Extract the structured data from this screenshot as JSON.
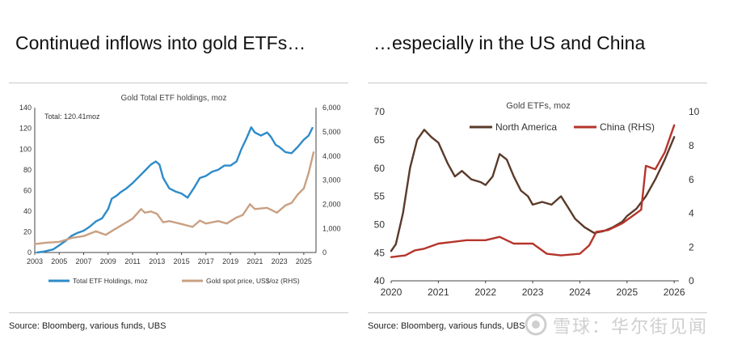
{
  "left": {
    "headline": "Continued inflows into gold ETFs…",
    "source": "Source: Bloomberg, various funds, UBS"
  },
  "right": {
    "headline": "…especially in the US and China",
    "source": "Source: Bloomberg, various funds, UBS"
  },
  "watermark": "雪球：华尔街见闻",
  "chart_data": [
    {
      "type": "line",
      "title": "Gold Total ETF holdings, moz",
      "annotation": "Total: 120.41moz",
      "xlabel": "",
      "ylabel": "",
      "xlim": [
        2003,
        2026
      ],
      "ylim": [
        0,
        140
      ],
      "y2lim": [
        0,
        6000
      ],
      "x_ticks": [
        "2003",
        "2005",
        "2007",
        "2009",
        "2011",
        "2013",
        "2015",
        "2017",
        "2019",
        "2021",
        "2023",
        "2025"
      ],
      "y_ticks": [
        "0",
        "20",
        "40",
        "60",
        "80",
        "100",
        "120",
        "140"
      ],
      "y2_ticks": [
        "0",
        "1,000",
        "2,000",
        "3,000",
        "4,000",
        "5,000",
        "6,000"
      ],
      "legend_position": "bottom",
      "grid": false,
      "series": [
        {
          "name": "Total ETF Holdings, moz",
          "axis": "left",
          "color": "#2e8bc9",
          "x": [
            2003.2,
            2003.8,
            2004.5,
            2005.0,
            2005.5,
            2006.0,
            2006.5,
            2007.0,
            2007.5,
            2008.0,
            2008.5,
            2009.0,
            2009.3,
            2009.7,
            2010.0,
            2010.5,
            2011.0,
            2011.5,
            2012.0,
            2012.5,
            2012.9,
            2013.2,
            2013.5,
            2014.0,
            2014.5,
            2015.0,
            2015.5,
            2016.0,
            2016.5,
            2017.0,
            2017.5,
            2018.0,
            2018.5,
            2019.0,
            2019.5,
            2019.9,
            2020.3,
            2020.7,
            2021.0,
            2021.5,
            2022.0,
            2022.3,
            2022.7,
            2023.0,
            2023.5,
            2024.0,
            2024.5,
            2025.0,
            2025.4,
            2025.7
          ],
          "values": [
            0,
            1,
            3,
            7,
            11,
            16,
            19,
            21,
            25,
            30,
            33,
            42,
            52,
            55,
            58,
            62,
            67,
            73,
            79,
            85,
            88,
            85,
            72,
            62,
            59,
            57,
            53,
            62,
            72,
            74,
            78,
            80,
            84,
            84,
            88,
            100,
            110,
            121,
            116,
            113,
            116,
            112,
            104,
            102,
            97,
            96,
            102,
            109,
            113,
            120.4
          ]
        },
        {
          "name": "Gold spot price, US$/oz (RHS)",
          "axis": "right",
          "color": "#c9a083",
          "x": [
            2003.0,
            2004.0,
            2005.0,
            2006.0,
            2007.0,
            2008.0,
            2008.8,
            2009.5,
            2010.0,
            2010.5,
            2011.0,
            2011.7,
            2012.0,
            2012.5,
            2013.0,
            2013.5,
            2014.0,
            2015.0,
            2015.9,
            2016.5,
            2017.0,
            2018.0,
            2018.7,
            2019.5,
            2020.0,
            2020.6,
            2021.0,
            2022.0,
            2022.8,
            2023.5,
            2024.0,
            2024.5,
            2025.0,
            2025.4,
            2025.8
          ],
          "values": [
            350,
            410,
            440,
            600,
            680,
            880,
            730,
            950,
            1100,
            1250,
            1400,
            1800,
            1650,
            1700,
            1600,
            1250,
            1300,
            1180,
            1060,
            1320,
            1200,
            1300,
            1200,
            1450,
            1550,
            2000,
            1800,
            1850,
            1650,
            1950,
            2050,
            2400,
            2650,
            3300,
            4150
          ]
        }
      ]
    },
    {
      "type": "line",
      "title": "Gold ETFs, moz",
      "xlabel": "",
      "ylabel": "",
      "xlim": [
        2020,
        2026.1
      ],
      "ylim": [
        40,
        70
      ],
      "y2lim": [
        0,
        10
      ],
      "x_ticks": [
        "2020",
        "2021",
        "2022",
        "2023",
        "2024",
        "2025",
        "2026"
      ],
      "y_ticks": [
        "40",
        "45",
        "50",
        "55",
        "60",
        "65",
        "70"
      ],
      "y2_ticks": [
        "0",
        "2",
        "4",
        "6",
        "8",
        "10"
      ],
      "legend_position": "top",
      "grid": false,
      "series": [
        {
          "name": "North America",
          "axis": "left",
          "color": "#5a3a2a",
          "x": [
            2020.0,
            2020.1,
            2020.25,
            2020.4,
            2020.55,
            2020.7,
            2020.85,
            2021.0,
            2021.2,
            2021.35,
            2021.5,
            2021.7,
            2021.9,
            2022.0,
            2022.15,
            2022.3,
            2022.45,
            2022.6,
            2022.75,
            2022.9,
            2023.0,
            2023.2,
            2023.4,
            2023.6,
            2023.75,
            2023.9,
            2024.1,
            2024.3,
            2024.5,
            2024.7,
            2024.9,
            2025.0,
            2025.2,
            2025.4,
            2025.6,
            2025.8,
            2026.0
          ],
          "values": [
            45.3,
            46.5,
            52,
            60,
            65,
            66.8,
            65.5,
            64.5,
            60.8,
            58.5,
            59.5,
            58,
            57.5,
            57,
            58.5,
            62.5,
            61.5,
            58.5,
            56,
            55,
            53.5,
            54,
            53.5,
            55,
            53,
            51,
            49.5,
            48.5,
            48.8,
            49.5,
            50.5,
            51.5,
            52.8,
            55,
            58,
            61.5,
            65.5
          ]
        },
        {
          "name": "China (RHS)",
          "axis": "right",
          "color": "#b5352b",
          "x": [
            2020.0,
            2020.3,
            2020.5,
            2020.7,
            2021.0,
            2021.3,
            2021.6,
            2022.0,
            2022.3,
            2022.6,
            2023.0,
            2023.3,
            2023.6,
            2024.0,
            2024.2,
            2024.35,
            2024.6,
            2024.9,
            2025.1,
            2025.3,
            2025.4,
            2025.6,
            2025.8,
            2026.0
          ],
          "values": [
            1.4,
            1.5,
            1.8,
            1.9,
            2.2,
            2.3,
            2.4,
            2.4,
            2.6,
            2.2,
            2.2,
            1.6,
            1.5,
            1.6,
            2.1,
            2.9,
            3.0,
            3.4,
            3.8,
            4.2,
            6.8,
            6.6,
            7.6,
            9.2
          ]
        }
      ]
    }
  ]
}
